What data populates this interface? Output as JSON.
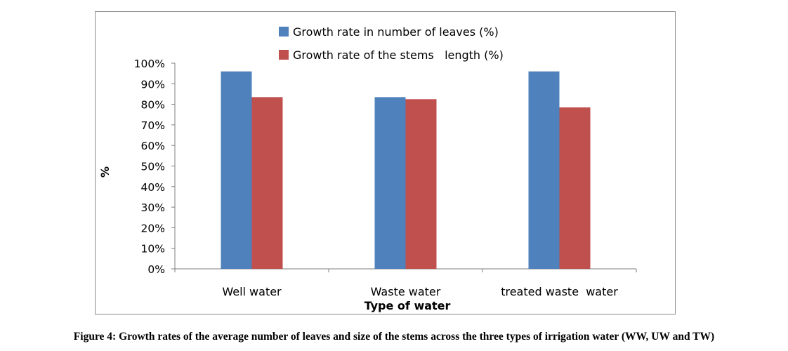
{
  "chart_data": {
    "type": "bar",
    "categories": [
      "Well water",
      "Waste water",
      "treated waste  water"
    ],
    "series": [
      {
        "name": "Growth rate in number of leaves (%)",
        "values": [
          0.96,
          0.835,
          0.96
        ],
        "color": "#4F81BD"
      },
      {
        "name": "Growth rate of the stems   length (%)",
        "values": [
          0.835,
          0.825,
          0.785
        ],
        "color": "#C0504D"
      }
    ],
    "xlabel": "Type of water",
    "ylabel": "%",
    "ylim": [
      0,
      1
    ],
    "yticks": [
      "0%",
      "10%",
      "20%",
      "30%",
      "40%",
      "50%",
      "60%",
      "70%",
      "80%",
      "90%",
      "100%"
    ],
    "grid": false,
    "legend": "top"
  },
  "caption": "Figure 4: Growth rates of the average number of leaves and size of the stems across the three types of irrigation water (WW, UW and TW)"
}
